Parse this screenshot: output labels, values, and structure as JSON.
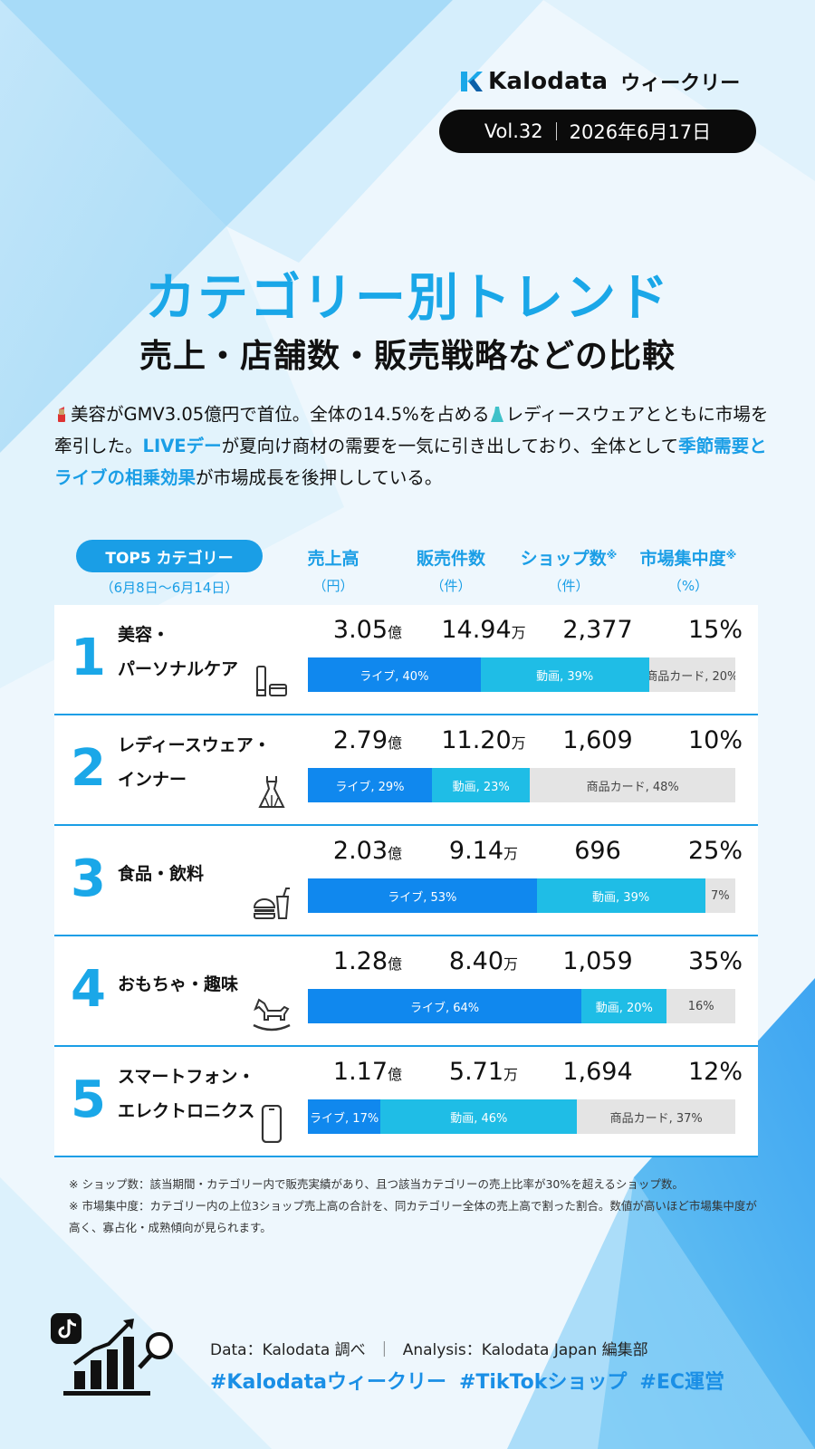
{
  "header": {
    "brand": "Kalodata",
    "series": "ウィークリー",
    "volume": "Vol.32",
    "date": "2026年6月17日"
  },
  "title": "カテゴリー別トレンド",
  "subtitle": "売上・店舗数・販売戦略などの比較",
  "summary": {
    "emoji_lipstick": "lipstick-emoji",
    "part1": "美容がGMV3.05億円で首位。全体の14.5%を占める",
    "emoji_dress": "dress-emoji",
    "part2": "レディースウェアとともに市場を牽引した。",
    "hl1": "LIVEデー",
    "part3": "が夏向け商材の需要を一気に引き出しており、全体として",
    "hl2": "季節需要とライブの相乗効果",
    "part4": "が市場成長を後押ししている。"
  },
  "table_header": {
    "top5_label": "TOP5 カテゴリー",
    "period": "（6月8日〜6月14日）",
    "columns": [
      {
        "label": "売上高",
        "mark": "",
        "unit": "（円）"
      },
      {
        "label": "販売件数",
        "mark": "",
        "unit": "（件）"
      },
      {
        "label": "ショップ数",
        "mark": "※",
        "unit": "（件）"
      },
      {
        "label": "市場集中度",
        "mark": "※",
        "unit": "（%）"
      }
    ]
  },
  "rows": [
    {
      "rank": "1",
      "name_lines": [
        "美容・",
        "パーソナルケア"
      ],
      "icon": "cosmetics-icon",
      "sales": "3.05",
      "sales_unit": "億",
      "units": "14.94",
      "units_unit": "万",
      "shops": "2,377",
      "concentration": "15%",
      "bar": [
        {
          "type": "live",
          "label": "ライブ, 40%",
          "pct": 40
        },
        {
          "type": "video",
          "label": "動画, 39%",
          "pct": 39
        },
        {
          "type": "card",
          "label": "商品カード, 20%",
          "pct": 20
        }
      ]
    },
    {
      "rank": "2",
      "name_lines": [
        "レディースウェア・",
        "インナー"
      ],
      "icon": "dress-icon",
      "sales": "2.79",
      "sales_unit": "億",
      "units": "11.20",
      "units_unit": "万",
      "shops": "1,609",
      "concentration": "10%",
      "bar": [
        {
          "type": "live",
          "label": "ライブ, 29%",
          "pct": 29
        },
        {
          "type": "video",
          "label": "動画, 23%",
          "pct": 23
        },
        {
          "type": "card",
          "label": "商品カード, 48%",
          "pct": 48
        }
      ]
    },
    {
      "rank": "3",
      "name_lines": [
        "食品・飲料"
      ],
      "icon": "burger-drink-icon",
      "sales": "2.03",
      "sales_unit": "億",
      "units": "9.14",
      "units_unit": "万",
      "shops": "696",
      "concentration": "25%",
      "bar": [
        {
          "type": "live",
          "label": "ライブ, 53%",
          "pct": 53
        },
        {
          "type": "video",
          "label": "動画, 39%",
          "pct": 39
        },
        {
          "type": "card",
          "label": "7%",
          "pct": 7
        }
      ]
    },
    {
      "rank": "4",
      "name_lines": [
        "おもちゃ・趣味"
      ],
      "icon": "rocking-horse-icon",
      "sales": "1.28",
      "sales_unit": "億",
      "units": "8.40",
      "units_unit": "万",
      "shops": "1,059",
      "concentration": "35%",
      "bar": [
        {
          "type": "live",
          "label": "ライブ, 64%",
          "pct": 64
        },
        {
          "type": "video",
          "label": "動画, 20%",
          "pct": 20
        },
        {
          "type": "card",
          "label": "16%",
          "pct": 16
        }
      ]
    },
    {
      "rank": "5",
      "name_lines": [
        "スマートフォン・",
        "エレクトロニクス"
      ],
      "icon": "smartphone-icon",
      "sales": "1.17",
      "sales_unit": "億",
      "units": "5.71",
      "units_unit": "万",
      "shops": "1,694",
      "concentration": "12%",
      "bar": [
        {
          "type": "live",
          "label": "ライブ, 17%",
          "pct": 17
        },
        {
          "type": "video",
          "label": "動画, 46%",
          "pct": 46
        },
        {
          "type": "card",
          "label": "商品カード, 37%",
          "pct": 37
        }
      ]
    }
  ],
  "notes": [
    "※ ショップ数：該当期間・カテゴリー内で販売実績があり、且つ該当カテゴリーの売上比率が30%を超えるショップ数。",
    "※ 市場集中度：カテゴリー内の上位3ショップ売上高の合計を、同カテゴリー全体の売上高で割った割合。数値が高いほど市場集中度が高く、寡占化・成熟傾向が見られます。"
  ],
  "footer": {
    "data_source": "Data：Kalodata 調べ",
    "separator": "｜",
    "analysis": "Analysis：Kalodata Japan 編集部",
    "tags": [
      "#Kalodataウィークリー",
      "#TikTokショップ",
      "#EC運営"
    ]
  },
  "colors": {
    "accent": "#1aa7e8",
    "live": "#1088ee",
    "video": "#1fbde6",
    "card": "#e4e4e4"
  }
}
